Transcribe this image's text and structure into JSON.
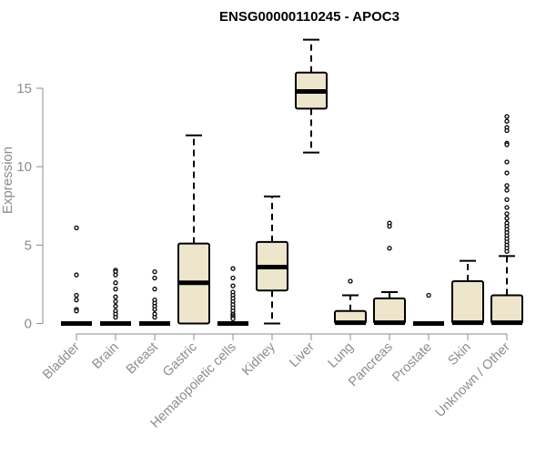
{
  "chart_data": {
    "type": "boxplot",
    "title": "ENSG00000110245 - APOC3",
    "ylabel": "Expression",
    "xlabel": "",
    "ylim": [
      -0.5,
      18
    ],
    "yticks": [
      0,
      5,
      10,
      15
    ],
    "box_fill": "#ede5cc",
    "box_stroke": "#000000",
    "axis_color": "#8c8c8c",
    "categories": [
      "Bladder",
      "Brain",
      "Breast",
      "Gastric",
      "Hematopoietic cells",
      "Kidney",
      "Liver",
      "Lung",
      "Pancreas",
      "Prostate",
      "Skin",
      "Unknown / Other"
    ],
    "boxes": [
      {
        "q1": 0,
        "median": 0.05,
        "q3": 0.1,
        "whisker_low": 0,
        "whisker_high": 0.1,
        "outliers": [
          6.1,
          3.1,
          1.8,
          1.5,
          0.9,
          0.8
        ]
      },
      {
        "q1": 0,
        "median": 0.05,
        "q3": 0.1,
        "whisker_low": 0,
        "whisker_high": 0.1,
        "outliers": [
          3.4,
          3.3,
          3.1,
          2.6,
          2.2,
          1.7,
          1.4,
          1.1,
          0.8,
          0.6,
          0.4
        ]
      },
      {
        "q1": 0,
        "median": 0.05,
        "q3": 0.1,
        "whisker_low": 0,
        "whisker_high": 0.1,
        "outliers": [
          3.3,
          2.9,
          2.2,
          1.5,
          1.3,
          1.1,
          0.9,
          0.6,
          0.4
        ]
      },
      {
        "q1": 0,
        "median": 2.6,
        "q3": 5.1,
        "whisker_low": 0,
        "whisker_high": 12.0,
        "outliers": []
      },
      {
        "q1": 0,
        "median": 0.05,
        "q3": 0.1,
        "whisker_low": 0,
        "whisker_high": 0.1,
        "outliers": [
          3.5,
          2.9,
          2.4,
          2.0,
          1.8,
          1.6,
          1.4,
          1.2,
          1.0,
          0.8,
          0.6,
          0.5,
          0.4,
          0.3
        ]
      },
      {
        "q1": 2.1,
        "median": 3.6,
        "q3": 5.2,
        "whisker_low": 0,
        "whisker_high": 8.1,
        "outliers": []
      },
      {
        "q1": 13.7,
        "median": 14.8,
        "q3": 16.0,
        "whisker_low": 10.9,
        "whisker_high": 18.1,
        "outliers": []
      },
      {
        "q1": 0,
        "median": 0.05,
        "q3": 0.8,
        "whisker_low": 0,
        "whisker_high": 1.8,
        "outliers": [
          2.7
        ]
      },
      {
        "q1": 0,
        "median": 0.05,
        "q3": 1.6,
        "whisker_low": 0,
        "whisker_high": 2.0,
        "outliers": [
          6.4,
          6.2,
          4.8
        ]
      },
      {
        "q1": 0,
        "median": 0.05,
        "q3": 0.1,
        "whisker_low": 0,
        "whisker_high": 0.1,
        "outliers": [
          1.8
        ]
      },
      {
        "q1": 0,
        "median": 0.05,
        "q3": 2.7,
        "whisker_low": 0,
        "whisker_high": 4.0,
        "outliers": []
      },
      {
        "q1": 0,
        "median": 0.05,
        "q3": 1.8,
        "whisker_low": 0,
        "whisker_high": 4.3,
        "outliers": [
          13.2,
          12.9,
          12.5,
          12.3,
          11.5,
          11.4,
          10.3,
          9.6,
          8.8,
          8.5,
          7.9,
          7.4,
          7.0,
          6.7,
          6.4,
          6.2,
          6.0,
          5.8,
          5.6,
          5.4,
          5.2,
          5.0,
          4.8,
          4.6
        ]
      }
    ]
  }
}
